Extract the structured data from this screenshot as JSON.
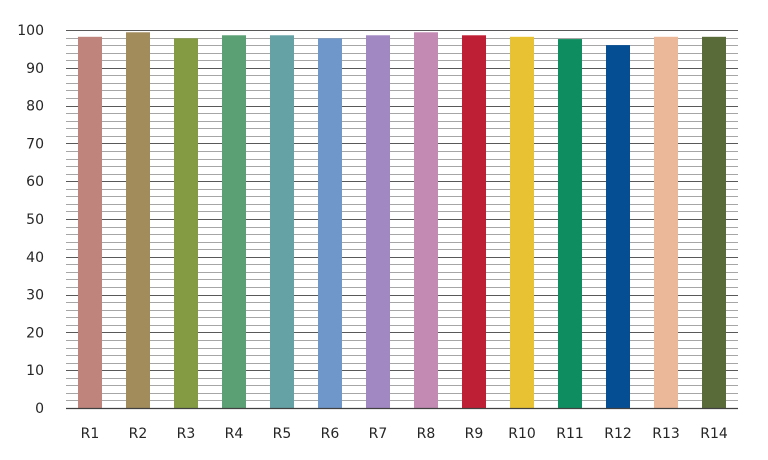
{
  "chart_data": {
    "type": "bar",
    "title": "",
    "xlabel": "",
    "ylabel": "",
    "categories": [
      "R1",
      "R2",
      "R3",
      "R4",
      "R5",
      "R6",
      "R7",
      "R8",
      "R9",
      "R10",
      "R11",
      "R12",
      "R13",
      "R14"
    ],
    "values": [
      98.2,
      99.4,
      97.8,
      98.6,
      98.6,
      97.8,
      98.6,
      99.4,
      98.6,
      98.2,
      97.6,
      96.0,
      98.2,
      98.2
    ],
    "colors": [
      "#bf847c",
      "#a38c5c",
      "#849b44",
      "#5b9f74",
      "#64a2a6",
      "#7097c9",
      "#a288c3",
      "#c38bb3",
      "#bf1f34",
      "#e8c232",
      "#0e8e60",
      "#064e93",
      "#ebb899",
      "#5a6b3a"
    ],
    "ylim": [
      0,
      100
    ],
    "y_ticks": [
      0,
      10,
      20,
      30,
      40,
      50,
      60,
      70,
      80,
      90,
      100
    ],
    "grid": true,
    "legend": "none"
  }
}
